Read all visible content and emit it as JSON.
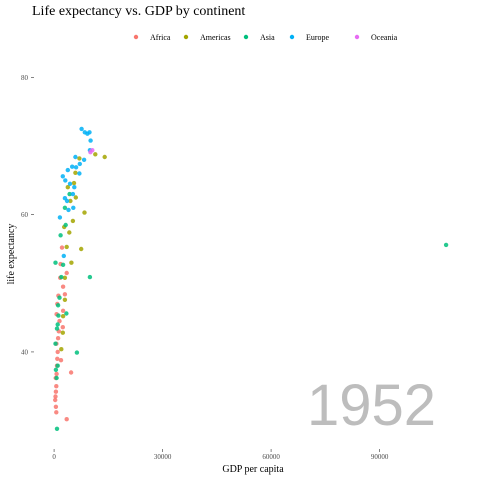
{
  "chart_data": {
    "type": "scatter",
    "title": "Life expectancy vs. GDP by continent",
    "xlabel": "GDP per capita",
    "ylabel": "life expectancy",
    "xlim": [
      -5000,
      115000
    ],
    "ylim": [
      26,
      84
    ],
    "x_ticks": [
      0,
      30000,
      60000,
      90000
    ],
    "x_tick_labels": [
      "0",
      "30000",
      "60000",
      "90000"
    ],
    "y_ticks": [
      40,
      60,
      80
    ],
    "y_tick_labels": [
      "40",
      "60",
      "80"
    ],
    "grid": false,
    "legend_position": "top",
    "year_label": "1952",
    "series": [
      {
        "name": "Africa",
        "color": "#F8766D",
        "points": [
          [
            400,
            33.5
          ],
          [
            500,
            34.2
          ],
          [
            600,
            35.0
          ],
          [
            450,
            36.2
          ],
          [
            700,
            36.8
          ],
          [
            800,
            38.0
          ],
          [
            900,
            39.0
          ],
          [
            1000,
            40.0
          ],
          [
            650,
            41.2
          ],
          [
            1100,
            42.0
          ],
          [
            1300,
            43.0
          ],
          [
            1500,
            44.5
          ],
          [
            700,
            45.5
          ],
          [
            900,
            47.0
          ],
          [
            1200,
            48.2
          ],
          [
            2500,
            49.5
          ],
          [
            1700,
            50.8
          ],
          [
            3500,
            51.5
          ],
          [
            1800,
            52.8
          ],
          [
            2200,
            55.2
          ],
          [
            4700,
            37.0
          ],
          [
            3500,
            30.2
          ],
          [
            2500,
            46.0
          ],
          [
            1900,
            38.8
          ],
          [
            2400,
            43.6
          ],
          [
            3000,
            48.4
          ],
          [
            500,
            32.0
          ],
          [
            600,
            31.2
          ],
          [
            300,
            33.0
          ]
        ]
      },
      {
        "name": "Americas",
        "color": "#A3A500",
        "points": [
          [
            2000,
            40.4
          ],
          [
            2500,
            45.2
          ],
          [
            3000,
            50.8
          ],
          [
            3500,
            55.3
          ],
          [
            4200,
            57.4
          ],
          [
            5200,
            59.1
          ],
          [
            6000,
            62.5
          ],
          [
            3800,
            64.0
          ],
          [
            5900,
            66.1
          ],
          [
            7000,
            68.2
          ],
          [
            11400,
            68.8
          ],
          [
            13990,
            68.4
          ],
          [
            3000,
            47.6
          ],
          [
            2400,
            42.8
          ],
          [
            4500,
            62.0
          ],
          [
            5500,
            64.6
          ],
          [
            7500,
            55.0
          ],
          [
            4800,
            53.0
          ],
          [
            2800,
            58.2
          ],
          [
            8400,
            60.3
          ]
        ]
      },
      {
        "name": "Asia",
        "color": "#00BF7D",
        "points": [
          [
            800,
            28.8
          ],
          [
            500,
            37.4
          ],
          [
            700,
            36.2
          ],
          [
            800,
            43.4
          ],
          [
            1000,
            44.0
          ],
          [
            1200,
            45.3
          ],
          [
            1500,
            47.9
          ],
          [
            2000,
            50.9
          ],
          [
            2500,
            52.7
          ],
          [
            400,
            41.2
          ],
          [
            1800,
            57.0
          ],
          [
            3200,
            58.5
          ],
          [
            3000,
            61.0
          ],
          [
            6300,
            39.9
          ],
          [
            9900,
            50.9
          ],
          [
            108382,
            55.6
          ],
          [
            400,
            53.0
          ],
          [
            1000,
            38.0
          ],
          [
            1100,
            46.8
          ],
          [
            3400,
            45.6
          ],
          [
            4300,
            63.0
          ]
        ]
      },
      {
        "name": "Europe",
        "color": "#00B0F6",
        "points": [
          [
            2700,
            54.0
          ],
          [
            1600,
            59.6
          ],
          [
            4000,
            60.7
          ],
          [
            3000,
            62.4
          ],
          [
            5200,
            63.0
          ],
          [
            4400,
            64.5
          ],
          [
            3100,
            65.0
          ],
          [
            6100,
            66.9
          ],
          [
            7100,
            67.4
          ],
          [
            8300,
            68.0
          ],
          [
            9900,
            69.4
          ],
          [
            10100,
            70.8
          ],
          [
            7600,
            72.5
          ],
          [
            9800,
            72.0
          ],
          [
            9200,
            71.8
          ],
          [
            8500,
            72.0
          ],
          [
            5900,
            68.4
          ],
          [
            2400,
            65.6
          ],
          [
            5300,
            61.0
          ],
          [
            7000,
            66.0
          ],
          [
            3800,
            66.5
          ],
          [
            5000,
            67.0
          ],
          [
            3600,
            62.0
          ],
          [
            5600,
            64.0
          ]
        ]
      },
      {
        "name": "Oceania",
        "color": "#E76BF3",
        "points": [
          [
            10040,
            69.1
          ],
          [
            10560,
            69.4
          ]
        ]
      }
    ]
  }
}
